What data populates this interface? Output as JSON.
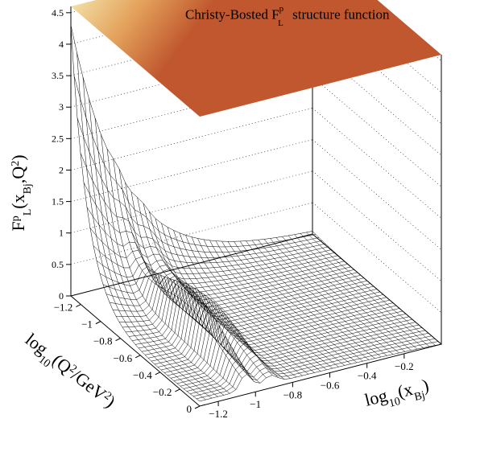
{
  "chart_data": {
    "type": "surface",
    "title": "Christy-Bosted F",
    "title_sup": "p",
    "title_sub": "L",
    "title_rest": " structure function",
    "zlabel": {
      "base": "F",
      "sup": "p",
      "sub": "L",
      "args": "(x",
      "args_sub": "Bj",
      "args_mid": ",Q",
      "args_sup": "2",
      "args_end": ")"
    },
    "xlabel": {
      "base": "log",
      "sub": "10",
      "args": "(x",
      "args_sub": "Bj",
      "args_end": ")"
    },
    "ylabel": {
      "base": "log",
      "sub": "10",
      "args": "(Q",
      "args_sup": "2",
      "args_mid": "/GeV",
      "args_sup2": "2",
      "args_end": ")"
    },
    "z_ticks": [
      "0",
      "0.5",
      "1",
      "1.5",
      "2",
      "2.5",
      "3",
      "3.5",
      "4",
      "4.5"
    ],
    "x_ticks": [
      "−1.2",
      "−1",
      "−0.8",
      "−0.6",
      "−0.4",
      "−0.2"
    ],
    "y_ticks": [
      "0",
      "−0.2",
      "−0.4",
      "−0.6",
      "−0.8",
      "−1",
      "−1.2"
    ],
    "x_range": [
      -1.3,
      0
    ],
    "y_range": [
      -1.3,
      0
    ],
    "z_range": [
      0,
      4.6
    ],
    "grid": true,
    "colors": {
      "surface_lines": "#000000",
      "top_map_main": "#c0572e",
      "top_map_mid": "#e3a05a",
      "top_map_light": "#f2dca0",
      "top_map_blue": "#3d73c4"
    }
  }
}
